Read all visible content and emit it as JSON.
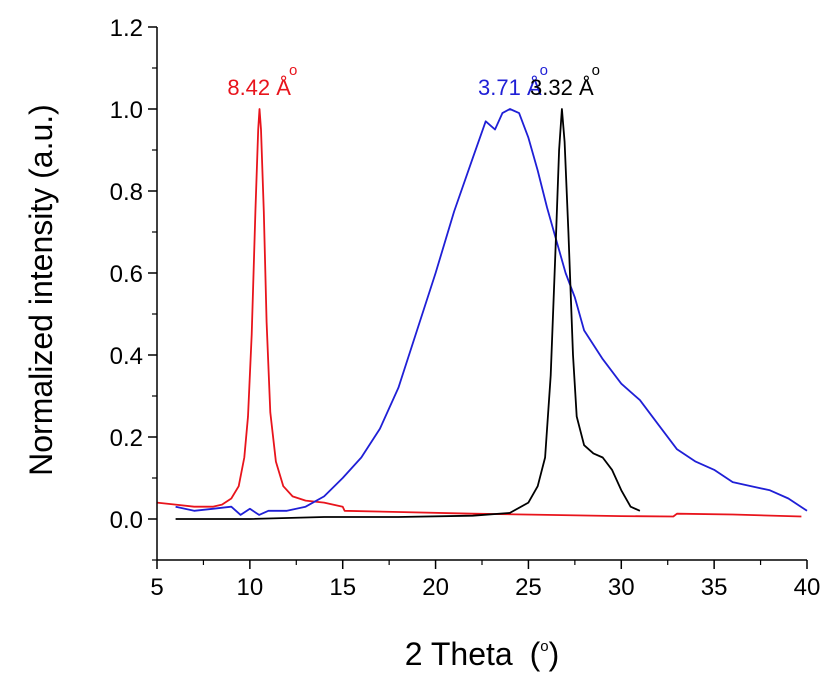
{
  "chart_data": {
    "type": "line",
    "xlabel": "2 Theta",
    "xlabel_unit": "o",
    "ylabel": "Normalized intensity (a.u.)",
    "xlim": [
      5,
      40
    ],
    "ylim": [
      -0.1,
      1.2
    ],
    "xticks": [
      5,
      10,
      15,
      20,
      25,
      30,
      35,
      40
    ],
    "yticks": [
      0.0,
      0.2,
      0.4,
      0.6,
      0.8,
      1.0,
      1.2
    ],
    "ytick_labels": [
      "0.0",
      "0.2",
      "0.4",
      "0.6",
      "0.8",
      "1.0",
      "1.2"
    ],
    "grid": false,
    "legend": "none",
    "annotations": [
      {
        "text": "8.42 Å",
        "color": "#e8141c",
        "x": 10.5,
        "y": 1.0
      },
      {
        "text": "3.71 Å",
        "color": "#1f1fd6",
        "x": 24.0,
        "y": 1.0
      },
      {
        "text": "3.32 Å",
        "color": "#000000",
        "x": 26.8,
        "y": 1.0
      }
    ],
    "series": [
      {
        "color": "#e8141c",
        "points": [
          [
            5.0,
            0.04
          ],
          [
            6.0,
            0.035
          ],
          [
            7.0,
            0.03
          ],
          [
            8.0,
            0.03
          ],
          [
            8.5,
            0.035
          ],
          [
            9.0,
            0.05
          ],
          [
            9.4,
            0.08
          ],
          [
            9.7,
            0.15
          ],
          [
            9.9,
            0.25
          ],
          [
            10.1,
            0.45
          ],
          [
            10.3,
            0.75
          ],
          [
            10.45,
            0.95
          ],
          [
            10.52,
            1.0
          ],
          [
            10.6,
            0.95
          ],
          [
            10.75,
            0.75
          ],
          [
            10.9,
            0.48
          ],
          [
            11.1,
            0.26
          ],
          [
            11.4,
            0.14
          ],
          [
            11.8,
            0.08
          ],
          [
            12.3,
            0.055
          ],
          [
            13.0,
            0.045
          ],
          [
            14.0,
            0.04
          ],
          [
            15.0,
            0.03
          ],
          [
            15.1,
            0.02
          ],
          [
            18.0,
            0.017
          ],
          [
            22.0,
            0.013
          ],
          [
            26.0,
            0.01
          ],
          [
            30.0,
            0.007
          ],
          [
            32.8,
            0.006
          ],
          [
            33.0,
            0.013
          ],
          [
            36.0,
            0.011
          ],
          [
            39.7,
            0.006
          ]
        ]
      },
      {
        "color": "#1f1fd6",
        "points": [
          [
            6.0,
            0.03
          ],
          [
            7.0,
            0.02
          ],
          [
            8.0,
            0.025
          ],
          [
            9.0,
            0.03
          ],
          [
            9.5,
            0.01
          ],
          [
            10.0,
            0.025
          ],
          [
            10.5,
            0.01
          ],
          [
            11.0,
            0.02
          ],
          [
            12.0,
            0.02
          ],
          [
            13.0,
            0.03
          ],
          [
            14.0,
            0.055
          ],
          [
            15.0,
            0.1
          ],
          [
            16.0,
            0.15
          ],
          [
            17.0,
            0.22
          ],
          [
            18.0,
            0.32
          ],
          [
            19.0,
            0.46
          ],
          [
            20.0,
            0.6
          ],
          [
            21.0,
            0.75
          ],
          [
            22.0,
            0.88
          ],
          [
            22.7,
            0.97
          ],
          [
            23.2,
            0.95
          ],
          [
            23.6,
            0.99
          ],
          [
            24.0,
            1.0
          ],
          [
            24.5,
            0.99
          ],
          [
            25.0,
            0.93
          ],
          [
            25.5,
            0.85
          ],
          [
            26.0,
            0.76
          ],
          [
            26.5,
            0.68
          ],
          [
            27.0,
            0.6
          ],
          [
            27.5,
            0.54
          ],
          [
            28.0,
            0.46
          ],
          [
            29.0,
            0.39
          ],
          [
            30.0,
            0.33
          ],
          [
            31.0,
            0.29
          ],
          [
            32.0,
            0.23
          ],
          [
            33.0,
            0.17
          ],
          [
            34.0,
            0.14
          ],
          [
            35.0,
            0.12
          ],
          [
            36.0,
            0.09
          ],
          [
            37.0,
            0.08
          ],
          [
            38.0,
            0.07
          ],
          [
            39.0,
            0.05
          ],
          [
            40.0,
            0.02
          ]
        ]
      },
      {
        "color": "#000000",
        "points": [
          [
            6.0,
            0.0
          ],
          [
            10.0,
            0.0
          ],
          [
            14.0,
            0.005
          ],
          [
            18.0,
            0.005
          ],
          [
            22.0,
            0.008
          ],
          [
            24.0,
            0.015
          ],
          [
            25.0,
            0.04
          ],
          [
            25.5,
            0.08
          ],
          [
            25.9,
            0.15
          ],
          [
            26.2,
            0.35
          ],
          [
            26.45,
            0.65
          ],
          [
            26.65,
            0.9
          ],
          [
            26.8,
            1.0
          ],
          [
            26.95,
            0.92
          ],
          [
            27.15,
            0.7
          ],
          [
            27.4,
            0.4
          ],
          [
            27.6,
            0.25
          ],
          [
            28.0,
            0.18
          ],
          [
            28.5,
            0.16
          ],
          [
            29.0,
            0.15
          ],
          [
            29.5,
            0.12
          ],
          [
            30.0,
            0.07
          ],
          [
            30.5,
            0.03
          ],
          [
            31.0,
            0.02
          ]
        ]
      }
    ]
  }
}
